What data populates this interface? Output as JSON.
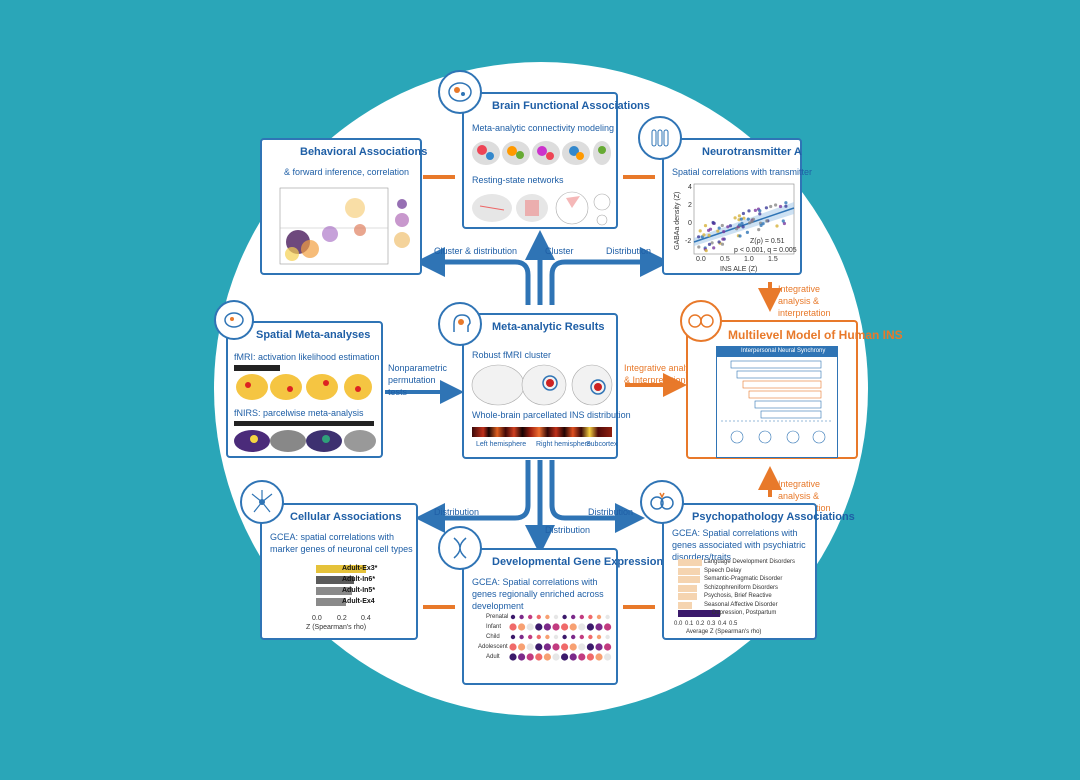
{
  "colors": {
    "background": "#2aa6b8",
    "blue": "#2f74b5",
    "orange": "#e8792a"
  },
  "panels": {
    "behavioral": {
      "title": "Behavioral Associations",
      "sub": "& forward inference, correlation"
    },
    "brain_functional": {
      "title": "Brain Functional Associations",
      "sub1": "Meta-analytic connectivity modeling",
      "sub2": "Resting-state networks"
    },
    "neurotransmitter": {
      "title": "Neurotransmitter A",
      "sub": "Spatial correlations with transmitter",
      "ylabel": "GABAa density (Z)",
      "xlabel": "INS ALE (Z)",
      "stat1": "Z(ρ) = 0.51",
      "stat2": "p < 0.001, q = 0.005",
      "xticks": [
        "0.0",
        "0.5",
        "1.0",
        "1.5"
      ],
      "yticks": [
        "4",
        "2",
        "0",
        "-2"
      ]
    },
    "spatial": {
      "title": "Spatial Meta-analyses",
      "sub1": "fMRI: activation likelihood estimation",
      "sub2": "fNIRS: parcelwise meta-analysis"
    },
    "results": {
      "title": "Meta-analytic Results",
      "sub1": "Robust fMRI cluster",
      "sub2": "Whole-brain parcellated INS distribution",
      "axis": [
        "Left hemisphere",
        "Right hemisphere",
        "Subcortex"
      ]
    },
    "model": {
      "title": "Multilevel Model of Human INS",
      "inner_title": "Interpersonal Neural Synchrony"
    },
    "cellular": {
      "title": "Cellular Associations",
      "sub": "GCEA: spatial correlations with marker genes of neuronal cell types",
      "bars": [
        {
          "label": "Adult-Ex3*",
          "value": 0.42,
          "color": "#e5c23a"
        },
        {
          "label": "Adult-In6*",
          "value": 0.32,
          "color": "#5b5b5b"
        },
        {
          "label": "Adult-In5*",
          "value": 0.3,
          "color": "#8a8a8a"
        },
        {
          "label": "Adult-Ex4",
          "value": 0.25,
          "color": "#8a8a8a"
        }
      ],
      "xticks": [
        "0.0",
        "0.2",
        "0.4"
      ],
      "xlabel": "Z (Spearman's rho)"
    },
    "developmental": {
      "title": "Developmental Gene Expression",
      "sub": "GCEA: Spatial correlations with genes regionally enriched across development",
      "stages": [
        "Prenatal",
        "Infant",
        "Child",
        "Adolescent",
        "Adult"
      ]
    },
    "psycho": {
      "title": "Psychopathology Associations",
      "sub": "GCEA: Spatial correlations with genes associated with psychiatric disorders/traits",
      "bars": [
        {
          "label": "Language Development Disorders",
          "value": 0.22
        },
        {
          "label": "Speech Delay",
          "value": 0.2
        },
        {
          "label": "Semantic-Pragmatic Disorder",
          "value": 0.2
        },
        {
          "label": "Schizophreniform Disorders",
          "value": 0.17
        },
        {
          "label": "Psychosis, Brief Reactive",
          "value": 0.17
        },
        {
          "label": "Seasonal Affective Disorder",
          "value": 0.13
        },
        {
          "label": "Depression, Postpartum",
          "value": 0.38
        }
      ],
      "xticks": [
        "0.0",
        "0.1",
        "0.2",
        "0.3",
        "0.4",
        "0.5"
      ],
      "xlabel": "Average Z (Spearman's rho)"
    }
  },
  "connectors": {
    "cluster_distribution": "Cluster & distribution",
    "cluster": "Cluster",
    "distribution_top": "Distribution",
    "nonparametric": "Nonparametric permutation tests",
    "integrative_mid": "Integrative analysis & Interpretation",
    "integrative_top": "Integrative analysis & interpretation",
    "integrative_bottom": "Integrative analysis & interpretation",
    "distribution_left": "Distribution",
    "distribution_mid": "Distribution",
    "distribution_right": "Distribution"
  }
}
